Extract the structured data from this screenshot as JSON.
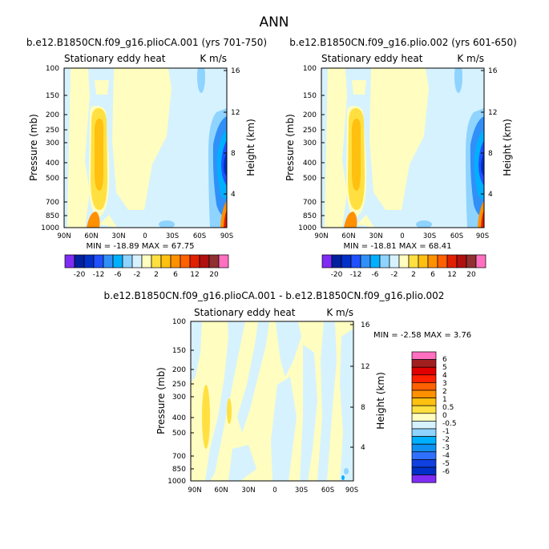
{
  "figure": {
    "title": "ANN",
    "palette": {
      "top": [
        "#7f2cf4",
        "#0020a0",
        "#0030c8",
        "#2050ff",
        "#3090f8",
        "#00b0ff",
        "#8fd3ff",
        "#d6f2ff",
        "#fffdc0",
        "#ffe040",
        "#ffc010",
        "#ff9000",
        "#ff6000",
        "#e02000",
        "#b01010",
        "#903030",
        "#ff70c0"
      ],
      "diff": [
        "#7f2cf4",
        "#0030c8",
        "#1040e0",
        "#3070ff",
        "#1090f0",
        "#00b0ff",
        "#8fd3ff",
        "#d6f2ff",
        "#fffdc0",
        "#ffe040",
        "#ffc010",
        "#ff9000",
        "#ff6000",
        "#ff2000",
        "#e00000",
        "#a02020",
        "#ff70c0"
      ]
    }
  },
  "chart_data": [
    {
      "type": "heatmap",
      "id": "left",
      "title": "b.e12.B1850CN.f09_g16.plioCA.001 (yrs 701-750)",
      "left_label": "Stationary eddy heat",
      "right_label": "K m/s",
      "xlabel": "",
      "ylabel": "Pressure (mb)",
      "ylabel_right": "Height (km)",
      "x_ticks": [
        "90N",
        "60N",
        "30N",
        "0",
        "30S",
        "60S",
        "90S"
      ],
      "y_ticks": [
        "100",
        "150",
        "200",
        "250",
        "300",
        "400",
        "500",
        "700",
        "850",
        "1000"
      ],
      "y_ticks_right": [
        "16",
        "12",
        "8",
        "4"
      ],
      "stats": "MIN = -18.89   MAX =  67.75",
      "contour_levels": [
        -20,
        -16,
        -12,
        -8,
        -6,
        -4,
        -2,
        -1,
        1,
        2,
        4,
        6,
        8,
        12,
        16,
        20
      ],
      "colorbar_labels": [
        "-20",
        "-12",
        "-6",
        "-2",
        "2",
        "6",
        "12",
        "20"
      ]
    },
    {
      "type": "heatmap",
      "id": "right",
      "title": "b.e12.B1850CN.f09_g16.plio.002 (yrs 601-650)",
      "left_label": "Stationary eddy heat",
      "right_label": "K m/s",
      "xlabel": "",
      "ylabel": "Pressure (mb)",
      "ylabel_right": "Height (km)",
      "x_ticks": [
        "90N",
        "60N",
        "30N",
        "0",
        "30S",
        "60S",
        "90S"
      ],
      "y_ticks": [
        "100",
        "150",
        "200",
        "250",
        "300",
        "400",
        "500",
        "700",
        "850",
        "1000"
      ],
      "y_ticks_right": [
        "16",
        "12",
        "8",
        "4"
      ],
      "stats": "MIN = -18.81   MAX =  68.41",
      "contour_levels": [
        -20,
        -16,
        -12,
        -8,
        -6,
        -4,
        -2,
        -1,
        1,
        2,
        4,
        6,
        8,
        12,
        16,
        20
      ],
      "colorbar_labels": [
        "-20",
        "-12",
        "-6",
        "-2",
        "2",
        "6",
        "12",
        "20"
      ]
    },
    {
      "type": "heatmap",
      "id": "diff",
      "title": "b.e12.B1850CN.f09_g16.plioCA.001 - b.e12.B1850CN.f09_g16.plio.002",
      "left_label": "Stationary eddy heat",
      "right_label": "K m/s",
      "xlabel": "",
      "ylabel": "Pressure (mb)",
      "ylabel_right": "Height (km)",
      "x_ticks": [
        "90N",
        "60N",
        "30N",
        "0",
        "30S",
        "60S",
        "90S"
      ],
      "y_ticks": [
        "100",
        "150",
        "200",
        "250",
        "300",
        "400",
        "500",
        "700",
        "850",
        "1000"
      ],
      "y_ticks_right": [
        "16",
        "12",
        "8",
        "4"
      ],
      "stats": "MIN =  -2.58   MAX =   3.76",
      "contour_levels": [
        -6,
        -5,
        -4,
        -3,
        -2,
        -1,
        -0.5,
        0,
        0.5,
        1,
        2,
        3,
        4,
        5,
        6
      ],
      "colorbar_labels": [
        "6",
        "5",
        "4",
        "3",
        "2",
        "1",
        "0.5",
        "0",
        "-0.5",
        "-1",
        "-2",
        "-3",
        "-4",
        "-5",
        "-6"
      ]
    }
  ]
}
